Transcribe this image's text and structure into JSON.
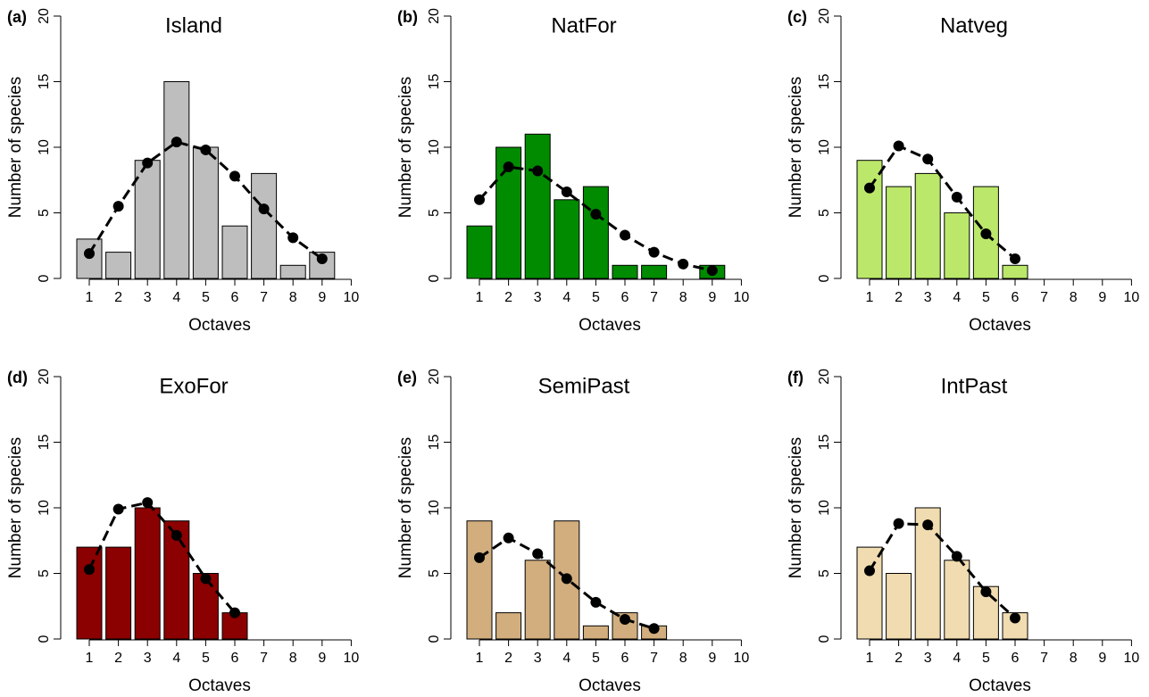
{
  "chart_data": [
    {
      "type": "bar",
      "panel_label": "(a)",
      "title": "Island",
      "ylabel": "Number of species",
      "xlabel": "Octaves",
      "categories": [
        "1",
        "2",
        "3",
        "4",
        "5",
        "6",
        "7",
        "8",
        "9",
        "10"
      ],
      "values": [
        3,
        2,
        9,
        15,
        10,
        4,
        8,
        1,
        2,
        null
      ],
      "color": "#bebebe",
      "fit_values": [
        1.9,
        5.5,
        8.8,
        10.4,
        9.8,
        7.8,
        5.3,
        3.1,
        1.5,
        null
      ],
      "fit_color": "#000000",
      "ylim": [
        0,
        20
      ],
      "yticks": [
        0,
        5,
        10,
        15,
        20
      ]
    },
    {
      "type": "bar",
      "panel_label": "(b)",
      "title": "NatFor",
      "ylabel": "Number of species",
      "xlabel": "Octaves",
      "categories": [
        "1",
        "2",
        "3",
        "4",
        "5",
        "6",
        "7",
        "8",
        "9",
        "10"
      ],
      "values": [
        4,
        10,
        11,
        6,
        7,
        1,
        1,
        null,
        1,
        null
      ],
      "color": "#008b00",
      "fit_values": [
        6.0,
        8.5,
        8.2,
        6.6,
        4.9,
        3.3,
        2.0,
        1.1,
        0.6,
        null
      ],
      "fit_color": "#000000",
      "ylim": [
        0,
        20
      ],
      "yticks": [
        0,
        5,
        10,
        15,
        20
      ]
    },
    {
      "type": "bar",
      "panel_label": "(c)",
      "title": "Natveg",
      "ylabel": "Number of species",
      "xlabel": "Octaves",
      "categories": [
        "1",
        "2",
        "3",
        "4",
        "5",
        "6",
        "7",
        "8",
        "9",
        "10"
      ],
      "values": [
        9,
        7,
        8,
        5,
        7,
        1,
        null,
        null,
        null,
        null
      ],
      "color": "#bbe86a",
      "fit_values": [
        6.9,
        10.1,
        9.1,
        6.2,
        3.4,
        1.5,
        null,
        null,
        null,
        null
      ],
      "fit_color": "#000000",
      "ylim": [
        0,
        20
      ],
      "yticks": [
        0,
        5,
        10,
        15,
        20
      ]
    },
    {
      "type": "bar",
      "panel_label": "(d)",
      "title": "ExoFor",
      "ylabel": "Number of species",
      "xlabel": "Octaves",
      "categories": [
        "1",
        "2",
        "3",
        "4",
        "5",
        "6",
        "7",
        "8",
        "9",
        "10"
      ],
      "values": [
        7,
        7,
        10,
        9,
        5,
        2,
        null,
        null,
        null,
        null
      ],
      "color": "#8b0000",
      "fit_values": [
        5.3,
        9.9,
        10.4,
        7.9,
        4.6,
        2.0,
        null,
        null,
        null,
        null
      ],
      "fit_color": "#000000",
      "ylim": [
        0,
        20
      ],
      "yticks": [
        0,
        5,
        10,
        15,
        20
      ]
    },
    {
      "type": "bar",
      "panel_label": "(e)",
      "title": "SemiPast",
      "ylabel": "Number of species",
      "xlabel": "Octaves",
      "categories": [
        "1",
        "2",
        "3",
        "4",
        "5",
        "6",
        "7",
        "8",
        "9",
        "10"
      ],
      "values": [
        9,
        2,
        6,
        9,
        1,
        2,
        1,
        null,
        null,
        null
      ],
      "color": "#d2ae7e",
      "fit_values": [
        6.2,
        7.7,
        6.5,
        4.6,
        2.8,
        1.5,
        0.8,
        null,
        null,
        null
      ],
      "fit_color": "#000000",
      "ylim": [
        0,
        20
      ],
      "yticks": [
        0,
        5,
        10,
        15,
        20
      ]
    },
    {
      "type": "bar",
      "panel_label": "(f)",
      "title": "IntPast",
      "ylabel": "Number of species",
      "xlabel": "Octaves",
      "categories": [
        "1",
        "2",
        "3",
        "4",
        "5",
        "6",
        "7",
        "8",
        "9",
        "10"
      ],
      "values": [
        7,
        5,
        10,
        6,
        4,
        2,
        null,
        null,
        null,
        null
      ],
      "color": "#f0dcb0",
      "fit_values": [
        5.2,
        8.8,
        8.7,
        6.3,
        3.6,
        1.6,
        null,
        null,
        null,
        null
      ],
      "fit_color": "#000000",
      "ylim": [
        0,
        20
      ],
      "yticks": [
        0,
        5,
        10,
        15,
        20
      ]
    }
  ]
}
